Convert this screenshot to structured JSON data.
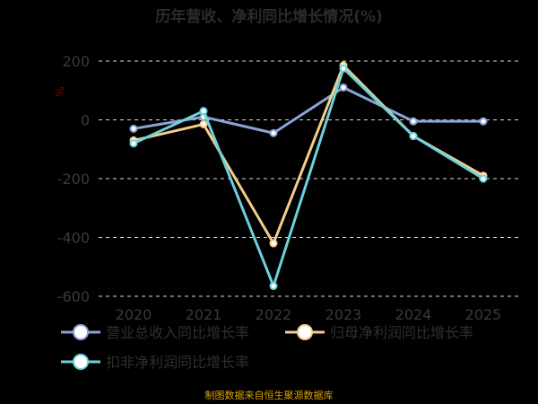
{
  "chart_data": {
    "type": "line",
    "title": "历年营收、净利同比增长情况(%)",
    "unit_label": "%",
    "categories": [
      "2020",
      "2021",
      "2022",
      "2023",
      "2024",
      "2025"
    ],
    "ylim": [
      -600,
      200
    ],
    "yticks": [
      200,
      0,
      -200,
      -400,
      -600
    ],
    "grid": true,
    "legend_position": "bottom",
    "series": [
      {
        "name": "营业总收入同比增长率",
        "color": "#8aa4d6",
        "values": [
          -30,
          10,
          -45,
          110,
          -5,
          -5
        ]
      },
      {
        "name": "归母净利润同比增长率",
        "color": "#f5cd8a",
        "values": [
          -70,
          -15,
          -420,
          185,
          -55,
          -190
        ]
      },
      {
        "name": "扣非净利润同比增长率",
        "color": "#6fd1dc",
        "values": [
          -80,
          30,
          -565,
          175,
          -55,
          -200
        ]
      }
    ],
    "source": "制图数据来自恒生聚源数据库"
  }
}
